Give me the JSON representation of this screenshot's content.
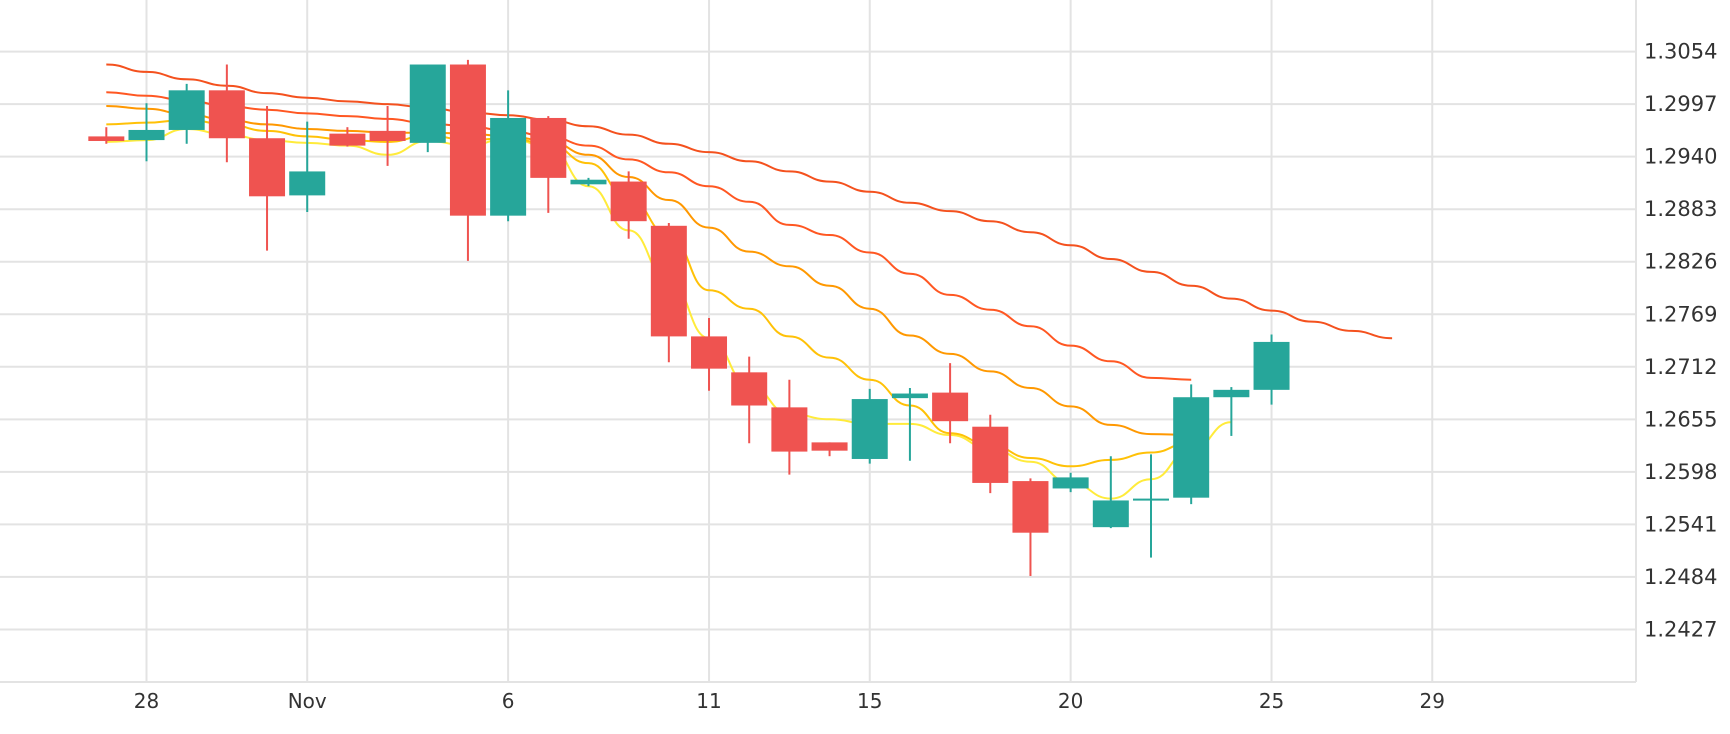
{
  "chart_data": {
    "type": "candlestick",
    "title": "",
    "xlabel": "",
    "ylabel": "",
    "ylim": [
      1.237,
      1.311
    ],
    "y_ticks": [
      1.3054,
      1.2997,
      1.294,
      1.2883,
      1.2826,
      1.2769,
      1.2712,
      1.2655,
      1.2598,
      1.2541,
      1.2484,
      1.2427
    ],
    "x_tick_labels": [
      {
        "date": "2018-10-28",
        "label": "28"
      },
      {
        "date": "2018-11-01",
        "label": "Nov"
      },
      {
        "date": "2018-11-06",
        "label": "6"
      },
      {
        "date": "2018-11-11",
        "label": "11"
      },
      {
        "date": "2018-11-15",
        "label": "15"
      },
      {
        "date": "2018-11-20",
        "label": "20"
      },
      {
        "date": "2018-11-25",
        "label": "25"
      },
      {
        "date": "2018-11-29",
        "label": "29"
      }
    ],
    "grid": true,
    "colors": {
      "up": "#26a69a",
      "down": "#ef5350",
      "grid": "#e3e3e3",
      "ma": [
        "#ffeb3b",
        "#ffc107",
        "#ff9800",
        "#ff5722",
        "#f4511e"
      ]
    },
    "candles": [
      {
        "date": "2018-10-27",
        "open": 1.2962,
        "high": 1.2972,
        "low": 1.2954,
        "close": 1.2957
      },
      {
        "date": "2018-10-28",
        "open": 1.2958,
        "high": 1.2998,
        "low": 1.2935,
        "close": 1.2969
      },
      {
        "date": "2018-10-29",
        "open": 1.2969,
        "high": 1.3019,
        "low": 1.2954,
        "close": 1.3012
      },
      {
        "date": "2018-10-30",
        "open": 1.3012,
        "high": 1.304,
        "low": 1.2934,
        "close": 1.296
      },
      {
        "date": "2018-10-31",
        "open": 1.296,
        "high": 1.2995,
        "low": 1.2838,
        "close": 1.2897
      },
      {
        "date": "2018-11-01",
        "open": 1.2898,
        "high": 1.2978,
        "low": 1.288,
        "close": 1.2924
      },
      {
        "date": "2018-11-02",
        "open": 1.2965,
        "high": 1.2972,
        "low": 1.2951,
        "close": 1.2952
      },
      {
        "date": "2018-11-03",
        "open": 1.2968,
        "high": 1.2995,
        "low": 1.293,
        "close": 1.2957
      },
      {
        "date": "2018-11-04",
        "open": 1.2955,
        "high": 1.304,
        "low": 1.2945,
        "close": 1.304
      },
      {
        "date": "2018-11-05",
        "open": 1.304,
        "high": 1.3045,
        "low": 1.2827,
        "close": 1.2876
      },
      {
        "date": "2018-11-06",
        "open": 1.2876,
        "high": 1.3012,
        "low": 1.287,
        "close": 1.2982
      },
      {
        "date": "2018-11-07",
        "open": 1.2982,
        "high": 1.2984,
        "low": 1.2879,
        "close": 1.2917
      },
      {
        "date": "2018-11-08",
        "open": 1.291,
        "high": 1.2917,
        "low": 1.2908,
        "close": 1.2915
      },
      {
        "date": "2018-11-09",
        "open": 1.2913,
        "high": 1.2924,
        "low": 1.2851,
        "close": 1.287
      },
      {
        "date": "2018-11-10",
        "open": 1.2865,
        "high": 1.2868,
        "low": 1.2717,
        "close": 1.2745
      },
      {
        "date": "2018-11-11",
        "open": 1.2745,
        "high": 1.2765,
        "low": 1.2686,
        "close": 1.271
      },
      {
        "date": "2018-11-12",
        "open": 1.2706,
        "high": 1.2723,
        "low": 1.2629,
        "close": 1.267
      },
      {
        "date": "2018-11-13",
        "open": 1.2668,
        "high": 1.2698,
        "low": 1.2595,
        "close": 1.262
      },
      {
        "date": "2018-11-14",
        "open": 1.263,
        "high": 1.263,
        "low": 1.2615,
        "close": 1.2621
      },
      {
        "date": "2018-11-15",
        "open": 1.2612,
        "high": 1.2688,
        "low": 1.2607,
        "close": 1.2677
      },
      {
        "date": "2018-11-16",
        "open": 1.2678,
        "high": 1.2689,
        "low": 1.261,
        "close": 1.2683
      },
      {
        "date": "2018-11-17",
        "open": 1.2684,
        "high": 1.2716,
        "low": 1.2629,
        "close": 1.2653
      },
      {
        "date": "2018-11-18",
        "open": 1.2647,
        "high": 1.266,
        "low": 1.2575,
        "close": 1.2586
      },
      {
        "date": "2018-11-19",
        "open": 1.2588,
        "high": 1.2591,
        "low": 1.2485,
        "close": 1.2532
      },
      {
        "date": "2018-11-20",
        "open": 1.258,
        "high": 1.2597,
        "low": 1.2576,
        "close": 1.2592
      },
      {
        "date": "2018-11-21",
        "open": 1.2538,
        "high": 1.2615,
        "low": 1.2537,
        "close": 1.2567
      },
      {
        "date": "2018-11-22",
        "open": 1.2569,
        "high": 1.2617,
        "low": 1.2505,
        "close": 1.2569
      },
      {
        "date": "2018-11-23",
        "open": 1.257,
        "high": 1.2693,
        "low": 1.2563,
        "close": 1.2679
      },
      {
        "date": "2018-11-24",
        "open": 1.2679,
        "high": 1.269,
        "low": 1.2637,
        "close": 1.2687
      },
      {
        "date": "2018-11-25",
        "open": 1.2687,
        "high": 1.2747,
        "low": 1.2671,
        "close": 1.2739
      }
    ],
    "moving_averages": [
      {
        "values": [
          1.2956,
          1.2958,
          1.297,
          1.2964,
          1.2958,
          1.2955,
          1.2952,
          1.2942,
          1.2957,
          1.2952,
          1.296,
          1.2951,
          1.2908,
          1.286,
          1.2805,
          1.2743,
          1.2692,
          1.2661,
          1.2655,
          1.265,
          1.265,
          1.2638,
          1.2623,
          1.2609,
          1.2586,
          1.2569,
          1.259,
          1.2622,
          1.2652
        ]
      },
      {
        "values": [
          1.2975,
          1.2977,
          1.298,
          1.2975,
          1.2968,
          1.2962,
          1.2958,
          1.2956,
          1.2963,
          1.2958,
          1.296,
          1.2954,
          1.2933,
          1.2895,
          1.2855,
          1.2795,
          1.2775,
          1.2745,
          1.2722,
          1.2698,
          1.267,
          1.264,
          1.2627,
          1.2613,
          1.2604,
          1.2611,
          1.2619,
          1.263
        ]
      },
      {
        "values": [
          1.2995,
          1.2992,
          1.2986,
          1.298,
          1.2975,
          1.297,
          1.2968,
          1.2966,
          1.2966,
          1.2965,
          1.2962,
          1.2957,
          1.2942,
          1.2918,
          1.2893,
          1.2863,
          1.2837,
          1.2821,
          1.28,
          1.2775,
          1.2746,
          1.2726,
          1.2707,
          1.2689,
          1.2669,
          1.2649,
          1.2639,
          1.2638
        ]
      },
      {
        "values": [
          1.301,
          1.3006,
          1.3001,
          1.2995,
          1.2991,
          1.2987,
          1.2984,
          1.2981,
          1.2976,
          1.2973,
          1.2968,
          1.2962,
          1.2952,
          1.2937,
          1.2923,
          1.2908,
          1.2891,
          1.2866,
          1.2855,
          1.2836,
          1.2813,
          1.279,
          1.2774,
          1.2756,
          1.2735,
          1.2718,
          1.27,
          1.2698
        ]
      },
      {
        "values": [
          1.304,
          1.3032,
          1.3024,
          1.3017,
          1.3009,
          1.3004,
          1.3,
          1.2997,
          1.2993,
          1.2988,
          1.2985,
          1.298,
          1.2973,
          1.2964,
          1.2954,
          1.2945,
          1.2935,
          1.2924,
          1.2913,
          1.2902,
          1.289,
          1.2881,
          1.287,
          1.2858,
          1.2844,
          1.2829,
          1.2815,
          1.28,
          1.2786,
          1.2773,
          1.2761,
          1.2751,
          1.2743
        ]
      }
    ]
  }
}
